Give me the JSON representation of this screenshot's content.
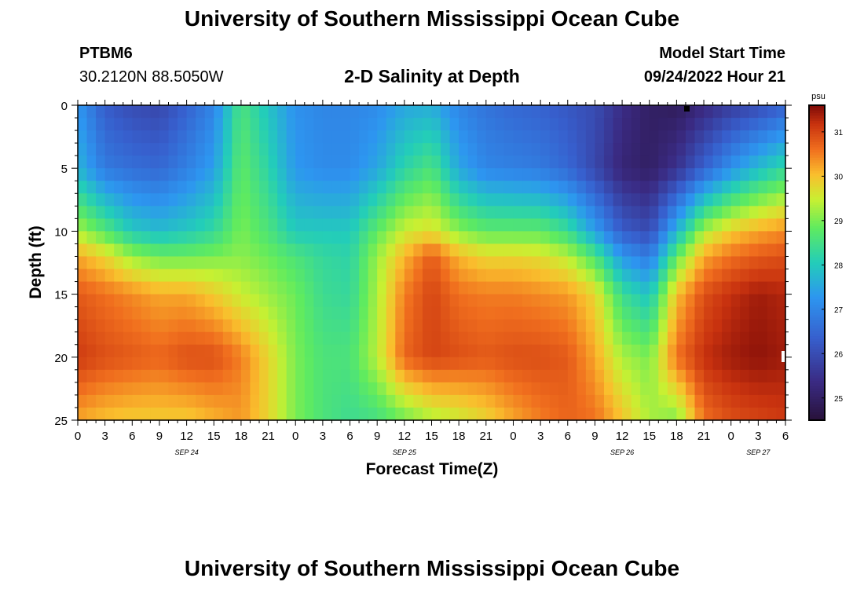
{
  "header": {
    "title": "University of Southern Mississippi Ocean Cube",
    "station_id": "PTBM6",
    "coordinates": "30.2120N  88.5050W",
    "plot_title": "2-D Salinity at Depth",
    "model_start_label": "Model Start Time",
    "model_start_value": "09/24/2022 Hour 21"
  },
  "footer": {
    "title": "University of Southern Mississippi Ocean Cube"
  },
  "chart_data": {
    "type": "heatmap",
    "title": "2-D Salinity at Depth",
    "xlabel": "Forecast Time(Z)",
    "ylabel": "Depth (ft)",
    "x_tick_labels": [
      "0",
      "3",
      "6",
      "9",
      "12",
      "15",
      "18",
      "21",
      "0",
      "3",
      "6",
      "9",
      "12",
      "15",
      "18",
      "21",
      "0",
      "3",
      "6",
      "9",
      "12",
      "15",
      "18",
      "21",
      "0",
      "3",
      "6"
    ],
    "x_date_labels": [
      {
        "label": "SEP 24",
        "hour_index": 12
      },
      {
        "label": "SEP 25",
        "hour_index": 36
      },
      {
        "label": "SEP 26",
        "hour_index": 60
      },
      {
        "label": "SEP 27",
        "hour_index": 75
      }
    ],
    "x_range_hours": [
      0,
      78
    ],
    "y_tick_labels": [
      "0",
      "5",
      "10",
      "15",
      "20",
      "25"
    ],
    "ylim": [
      0,
      25
    ],
    "colorbar": {
      "unit": "psu",
      "range": [
        24.5,
        31.6
      ],
      "tick_labels": [
        "31",
        "30",
        "29",
        "28",
        "27",
        "26",
        "25"
      ],
      "tick_values": [
        31,
        30,
        29,
        28,
        27,
        26,
        25
      ]
    },
    "depths_ft": [
      0,
      5,
      10,
      12,
      15,
      20,
      25
    ],
    "hours_index": [
      0,
      3,
      6,
      9,
      12,
      15,
      18,
      21,
      24,
      27,
      30,
      33,
      36,
      39,
      42,
      45,
      48,
      51,
      54,
      57,
      60,
      63,
      66,
      69,
      72,
      75,
      78
    ],
    "salinity_psu": [
      [
        27.3,
        26.3,
        26.0,
        25.9,
        26.4,
        27.0,
        28.6,
        27.9,
        27.2,
        27.0,
        27.0,
        27.1,
        27.5,
        27.6,
        27.0,
        26.7,
        26.5,
        26.4,
        26.2,
        26.0,
        25.4,
        25.0,
        24.9,
        25.3,
        25.7,
        26.0,
        26.4
      ],
      [
        27.7,
        26.8,
        26.6,
        26.5,
        26.9,
        27.4,
        28.8,
        28.2,
        27.3,
        27.1,
        27.1,
        27.5,
        28.2,
        28.6,
        27.5,
        27.0,
        26.9,
        26.8,
        26.5,
        25.9,
        25.2,
        25.0,
        25.5,
        26.4,
        27.2,
        27.8,
        28.3
      ],
      [
        29.3,
        28.7,
        28.0,
        27.8,
        28.0,
        28.3,
        29.0,
        28.6,
        28.0,
        28.0,
        28.0,
        28.8,
        29.5,
        29.7,
        29.1,
        28.8,
        28.8,
        28.8,
        28.4,
        27.4,
        26.3,
        26.0,
        27.7,
        29.3,
        29.9,
        30.2,
        30.4
      ],
      [
        30.2,
        29.8,
        29.2,
        28.9,
        28.9,
        29.0,
        29.1,
        28.9,
        28.6,
        28.3,
        28.2,
        29.2,
        30.1,
        30.8,
        30.1,
        29.8,
        29.8,
        29.7,
        29.4,
        28.6,
        27.3,
        26.8,
        28.8,
        30.2,
        30.6,
        30.8,
        30.9
      ],
      [
        30.8,
        30.6,
        30.4,
        30.2,
        30.2,
        29.9,
        29.5,
        29.2,
        28.9,
        28.4,
        28.3,
        29.3,
        30.5,
        31.0,
        30.6,
        30.5,
        30.5,
        30.4,
        30.3,
        29.8,
        28.4,
        27.9,
        30.0,
        30.9,
        31.2,
        31.4,
        31.3
      ],
      [
        31.1,
        30.9,
        30.8,
        30.7,
        30.9,
        30.9,
        30.5,
        29.8,
        29.0,
        28.6,
        28.6,
        29.4,
        30.7,
        31.0,
        30.9,
        30.8,
        30.9,
        30.9,
        30.8,
        30.2,
        29.3,
        29.0,
        30.6,
        31.2,
        31.4,
        31.5,
        31.4
      ],
      [
        30.2,
        30.0,
        29.9,
        29.9,
        29.9,
        30.1,
        30.3,
        29.8,
        29.0,
        28.6,
        28.4,
        28.5,
        28.9,
        29.3,
        29.5,
        29.8,
        30.2,
        30.5,
        30.7,
        30.6,
        30.0,
        29.3,
        29.0,
        30.6,
        30.9,
        31.0,
        31.1
      ]
    ],
    "marker_note": "small black square at hour ~67, depth 0"
  }
}
